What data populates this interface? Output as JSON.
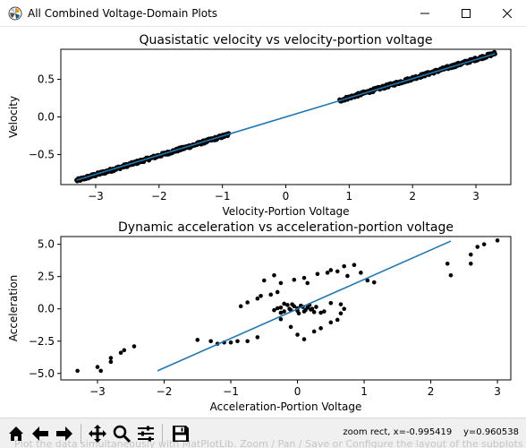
{
  "window": {
    "title": "All Combined Voltage-Domain Plots",
    "icon": "matplotlib-logo-icon",
    "controls": [
      "minimize-icon",
      "maximize-icon",
      "close-icon"
    ]
  },
  "chart_data": [
    {
      "type": "scatter",
      "title": "Quasistatic velocity vs velocity-portion voltage",
      "xlabel": "Velocity-Portion Voltage",
      "ylabel": "Velocity",
      "xlim": [
        -3.55,
        3.55
      ],
      "ylim": [
        -0.9,
        0.9
      ],
      "xticks": [
        -3,
        -2,
        -1,
        0,
        1,
        2,
        3
      ],
      "yticks": [
        -0.5,
        0.0,
        0.5
      ],
      "xtick_labels": [
        "−3",
        "−2",
        "−1",
        "0",
        "1",
        "2",
        "3"
      ],
      "ytick_labels": [
        "−0.5",
        "0.0",
        "0.5"
      ],
      "grid": false,
      "legend": "none",
      "point_color": "#000000",
      "line_color": "#1f77b4",
      "fit_line": {
        "x": [
          -3.3,
          3.3
        ],
        "y": [
          -0.84,
          0.84
        ]
      },
      "point_clusters": [
        {
          "x_range": [
            -3.3,
            -0.9
          ],
          "slope": 0.2555,
          "intercept": -0.0032,
          "scatter": 0.02
        },
        {
          "x_range": [
            0.85,
            3.3
          ],
          "slope": 0.2555,
          "intercept": 0.0025,
          "scatter": 0.02
        }
      ]
    },
    {
      "type": "scatter",
      "title": "Dynamic acceleration vs acceleration-portion voltage",
      "xlabel": "Acceleration-Portion Voltage",
      "ylabel": "Acceleration",
      "xlim": [
        -3.55,
        3.2
      ],
      "ylim": [
        -5.5,
        5.6
      ],
      "xticks": [
        -3,
        -2,
        -1,
        0,
        1,
        2,
        3
      ],
      "yticks": [
        -5.0,
        -2.5,
        0.0,
        2.5,
        5.0
      ],
      "xtick_labels": [
        "−3",
        "−2",
        "−1",
        "0",
        "1",
        "2",
        "3"
      ],
      "ytick_labels": [
        "−5.0",
        "−2.5",
        "0.0",
        "2.5",
        "5.0"
      ],
      "grid": false,
      "legend": "none",
      "point_color": "#000000",
      "line_color": "#1f77b4",
      "fit_line": {
        "x": [
          -2.1,
          2.3
        ],
        "y": [
          -4.8,
          5.25
        ]
      },
      "points": [
        [
          -3.3,
          -4.8
        ],
        [
          -3.0,
          -4.5
        ],
        [
          -2.95,
          -4.8
        ],
        [
          -2.8,
          -4.1
        ],
        [
          -2.8,
          -3.8
        ],
        [
          -2.65,
          -3.4
        ],
        [
          -2.6,
          -3.2
        ],
        [
          -2.45,
          -2.9
        ],
        [
          -1.5,
          -2.4
        ],
        [
          -1.3,
          -2.5
        ],
        [
          -1.2,
          -2.7
        ],
        [
          -1.1,
          -2.6
        ],
        [
          -1.0,
          -2.6
        ],
        [
          -0.9,
          -2.5
        ],
        [
          -0.75,
          -2.5
        ],
        [
          -0.6,
          -2.2
        ],
        [
          -0.85,
          0.2
        ],
        [
          -0.75,
          0.5
        ],
        [
          -0.6,
          0.8
        ],
        [
          -0.55,
          1.0
        ],
        [
          -0.4,
          1.1
        ],
        [
          -0.3,
          1.3
        ],
        [
          -0.25,
          -0.8
        ],
        [
          -0.1,
          -1.4
        ],
        [
          -0.5,
          2.2
        ],
        [
          -0.35,
          2.6
        ],
        [
          -0.25,
          2.0
        ],
        [
          -0.05,
          2.25
        ],
        [
          0.1,
          2.4
        ],
        [
          0.15,
          2.0
        ],
        [
          0.3,
          2.7
        ],
        [
          0.45,
          2.8
        ],
        [
          0.5,
          3.0
        ],
        [
          0.6,
          2.9
        ],
        [
          0.7,
          3.3
        ],
        [
          0.75,
          2.55
        ],
        [
          0.85,
          3.4
        ],
        [
          0.95,
          2.8
        ],
        [
          1.05,
          2.2
        ],
        [
          1.15,
          2.05
        ],
        [
          0.0,
          -2.0
        ],
        [
          0.1,
          -2.35
        ],
        [
          0.25,
          -1.75
        ],
        [
          0.35,
          -1.5
        ],
        [
          0.5,
          -1.05
        ],
        [
          0.6,
          -0.85
        ],
        [
          0.65,
          -0.35
        ],
        [
          0.7,
          0.0
        ],
        [
          0.65,
          0.35
        ],
        [
          0.5,
          0.45
        ],
        [
          0.4,
          -0.2
        ],
        [
          0.35,
          -0.3
        ],
        [
          -0.25,
          0.1
        ],
        [
          -0.2,
          -0.2
        ],
        [
          -0.15,
          0.3
        ],
        [
          -0.1,
          -0.1
        ],
        [
          -0.05,
          0.2
        ],
        [
          0.0,
          -0.15
        ],
        [
          0.05,
          0.25
        ],
        [
          0.1,
          -0.2
        ],
        [
          0.15,
          0.1
        ],
        [
          0.2,
          -0.05
        ],
        [
          -0.3,
          0.05
        ],
        [
          -0.25,
          -0.3
        ],
        [
          -0.2,
          0.4
        ],
        [
          -0.12,
          0.0
        ],
        [
          0.0,
          0.05
        ],
        [
          0.08,
          0.15
        ],
        [
          0.12,
          -0.1
        ],
        [
          0.18,
          0.3
        ],
        [
          0.22,
          0.0
        ],
        [
          -0.35,
          -0.1
        ],
        [
          0.28,
          0.15
        ],
        [
          -0.08,
          0.35
        ],
        [
          0.02,
          -0.35
        ],
        [
          0.25,
          -0.25
        ],
        [
          2.25,
          3.5
        ],
        [
          2.3,
          2.6
        ],
        [
          2.6,
          3.5
        ],
        [
          2.6,
          4.2
        ],
        [
          2.7,
          4.8
        ],
        [
          2.8,
          5.0
        ],
        [
          3.0,
          5.3
        ]
      ]
    }
  ],
  "toolbar": {
    "tools": [
      "home-icon",
      "back-arrow-icon",
      "forward-arrow-icon",
      "pan-icon",
      "zoom-icon",
      "configure-subplots-icon",
      "save-icon"
    ],
    "status": "zoom rect, x=-0.995419    y=0.960538",
    "ghost_text": "Plot the data simultaneously with MatPlotLib. Zoom / Pan / Save or Configure the layout of the subplots"
  }
}
